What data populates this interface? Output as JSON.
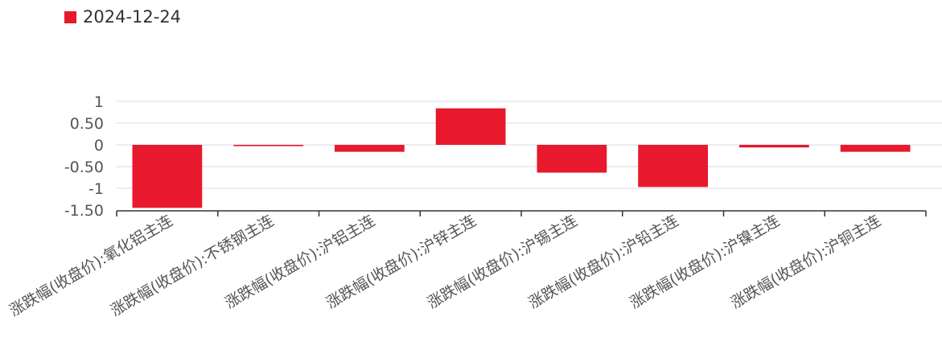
{
  "chart_data": {
    "type": "bar",
    "series": [
      {
        "name": "2024-12-24",
        "color": "#e8192c",
        "values": [
          -1.45,
          -0.03,
          -0.16,
          0.84,
          -0.64,
          -0.97,
          -0.06,
          -0.16
        ]
      }
    ],
    "categories": [
      "涨跌幅(收盘价):氧化铝主连",
      "涨跌幅(收盘价):不锈钢主连",
      "涨跌幅(收盘价):沪铝主连",
      "涨跌幅(收盘价):沪锌主连",
      "涨跌幅(收盘价):沪锡主连",
      "涨跌幅(收盘价):沪铅主连",
      "涨跌幅(收盘价):沪镍主连",
      "涨跌幅(收盘价):沪铜主连"
    ],
    "y_ticks": [
      {
        "value": 1,
        "label": "1"
      },
      {
        "value": 0.5,
        "label": "0.50"
      },
      {
        "value": 0,
        "label": "0"
      },
      {
        "value": -0.5,
        "label": "-0.50"
      },
      {
        "value": -1,
        "label": "-1"
      },
      {
        "value": -1.5,
        "label": "-1.50"
      }
    ],
    "ylim": [
      -1.5,
      1
    ],
    "grid": true,
    "legend_position": "top-left",
    "title": "",
    "xlabel": "",
    "ylabel": ""
  }
}
